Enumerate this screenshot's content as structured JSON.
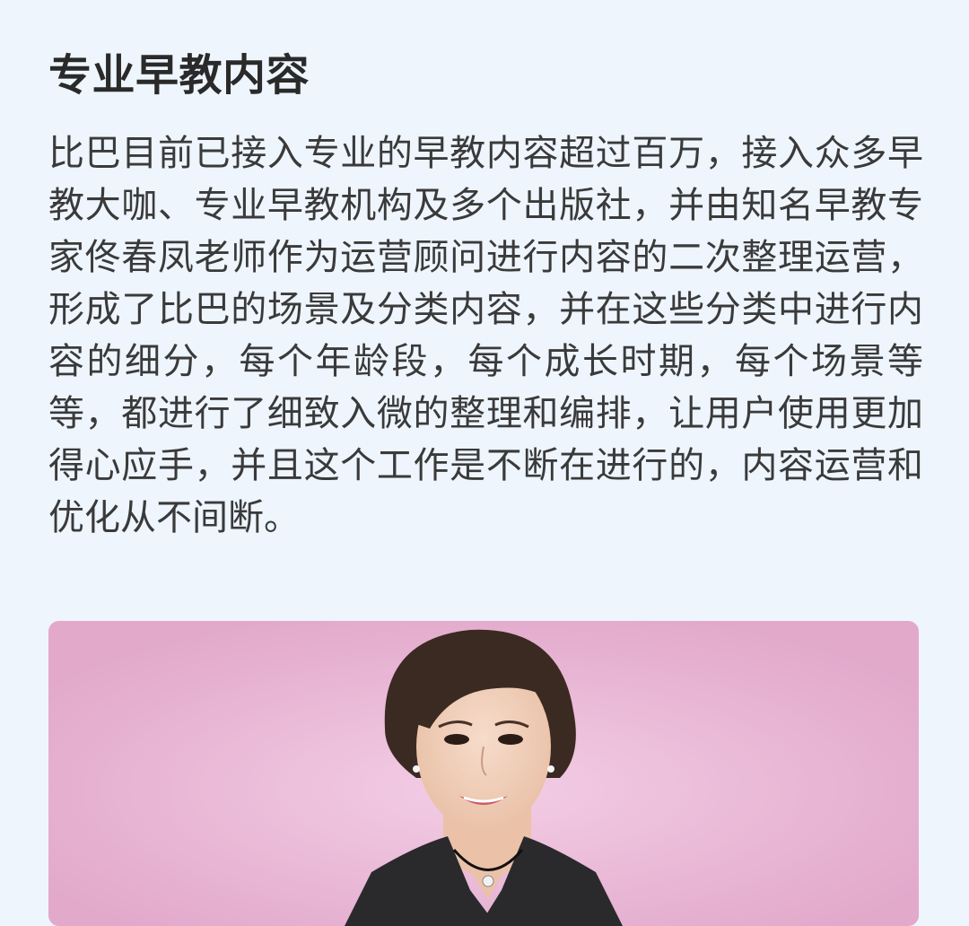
{
  "section": {
    "title": "专业早教内容",
    "body": "比巴目前已接入专业的早教内容超过百万，接入众多早教大咖、专业早教机构及多个出版社，并由知名早教专家佟春凤老师作为运营顾问进行内容的二次整理运营，形成了比巴的场景及分类内容，并在这些分类中进行内容的细分，每个年龄段，每个成长时期，每个场景等等，都进行了细致入微的整理和编排，让用户使用更加得心应手，并且这个工作是不断在进行的，内容运营和优化从不间断。"
  },
  "colors": {
    "page_background": "#EEF5FD",
    "title_text": "#2a2a2a",
    "body_text": "#3a3a3a",
    "photo_background": "#E8B6D5"
  },
  "image": {
    "subject": "expert-portrait-photo"
  }
}
